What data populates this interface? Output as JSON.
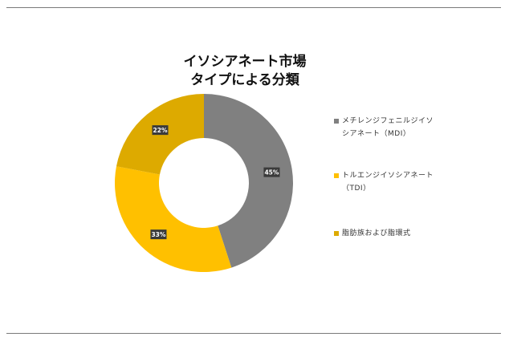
{
  "chart_data": {
    "type": "pie",
    "donut": true,
    "title": "イソシアネート市場\nタイプによる分類",
    "categories": [
      "メチレンジフェニルジイソシアネート（MDI）",
      "トルエンジイソシアネート（TDI）",
      "脂肪族および脂環式"
    ],
    "legend_labels": [
      "メチレンジフェニルジイソ\nシアネート（MDI）",
      "トルエンジイソシアネート\n（TDI）",
      "脂肪族および脂環式"
    ],
    "values": [
      45,
      33,
      22
    ],
    "data_labels": [
      "45%",
      "33%",
      "22%"
    ],
    "colors": [
      "#808080",
      "#FFC000",
      "#DDAA00"
    ],
    "legend_position": "right"
  }
}
